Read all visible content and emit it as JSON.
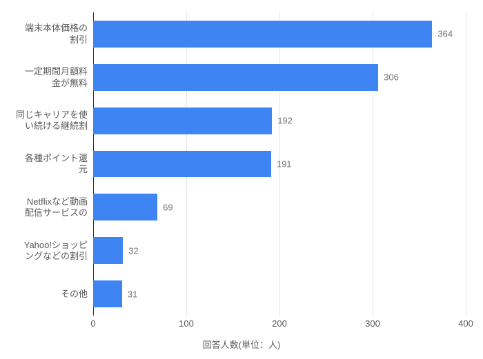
{
  "chart": {
    "type": "bar",
    "orientation": "horizontal",
    "xlim": [
      0,
      400
    ],
    "xtick_step": 100,
    "xticks": [
      0,
      100,
      200,
      300,
      400
    ],
    "x_title": "回答人数(単位：人)",
    "background_color": "#ffffff",
    "grid_color": "#e6e6e6",
    "baseline_color": "#333333",
    "bar_color": "#3f84f3",
    "value_label_color": "#757575",
    "axis_label_color": "#595959",
    "value_fontsize": 13,
    "axis_fontsize": 13,
    "bar_gap_ratio": 0.38,
    "categories": [
      "端末本体価格の\n割引",
      "一定期間月額料\n金が無料",
      "同じキャリアを使\nい続ける継続割",
      "各種ポイント還\n元",
      "Netflixなど動画\n配信サービスの",
      "Yahoo!ショッピ\nングなどの割引",
      "その他"
    ],
    "values": [
      364,
      306,
      192,
      191,
      69,
      32,
      31
    ]
  }
}
